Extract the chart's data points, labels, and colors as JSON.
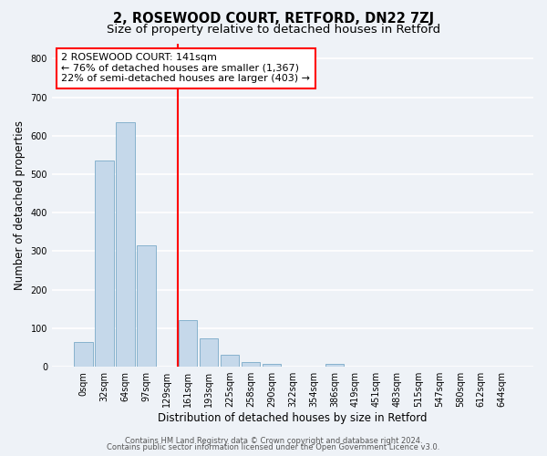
{
  "title": "2, ROSEWOOD COURT, RETFORD, DN22 7ZJ",
  "subtitle": "Size of property relative to detached houses in Retford",
  "xlabel": "Distribution of detached houses by size in Retford",
  "ylabel": "Number of detached properties",
  "bar_labels": [
    "0sqm",
    "32sqm",
    "64sqm",
    "97sqm",
    "129sqm",
    "161sqm",
    "193sqm",
    "225sqm",
    "258sqm",
    "290sqm",
    "322sqm",
    "354sqm",
    "386sqm",
    "419sqm",
    "451sqm",
    "483sqm",
    "515sqm",
    "547sqm",
    "580sqm",
    "612sqm",
    "644sqm"
  ],
  "bar_values": [
    65,
    535,
    635,
    315,
    0,
    120,
    73,
    32,
    13,
    8,
    0,
    0,
    8,
    0,
    0,
    0,
    0,
    0,
    0,
    0,
    0
  ],
  "bar_color": "#c5d8ea",
  "bar_edge_color": "#7aaac8",
  "vline_color": "red",
  "ylim": [
    0,
    840
  ],
  "yticks": [
    0,
    100,
    200,
    300,
    400,
    500,
    600,
    700,
    800
  ],
  "annotation_title": "2 ROSEWOOD COURT: 141sqm",
  "annotation_line1": "← 76% of detached houses are smaller (1,367)",
  "annotation_line2": "22% of semi-detached houses are larger (403) →",
  "annotation_box_color": "white",
  "annotation_box_edge_color": "red",
  "footer1": "Contains HM Land Registry data © Crown copyright and database right 2024.",
  "footer2": "Contains public sector information licensed under the Open Government Licence v3.0.",
  "bg_color": "#eef2f7",
  "grid_color": "white",
  "title_fontsize": 10.5,
  "subtitle_fontsize": 9.5,
  "tick_fontsize": 7,
  "ylabel_fontsize": 8.5,
  "xlabel_fontsize": 8.5,
  "annotation_fontsize": 8,
  "footer_fontsize": 6
}
